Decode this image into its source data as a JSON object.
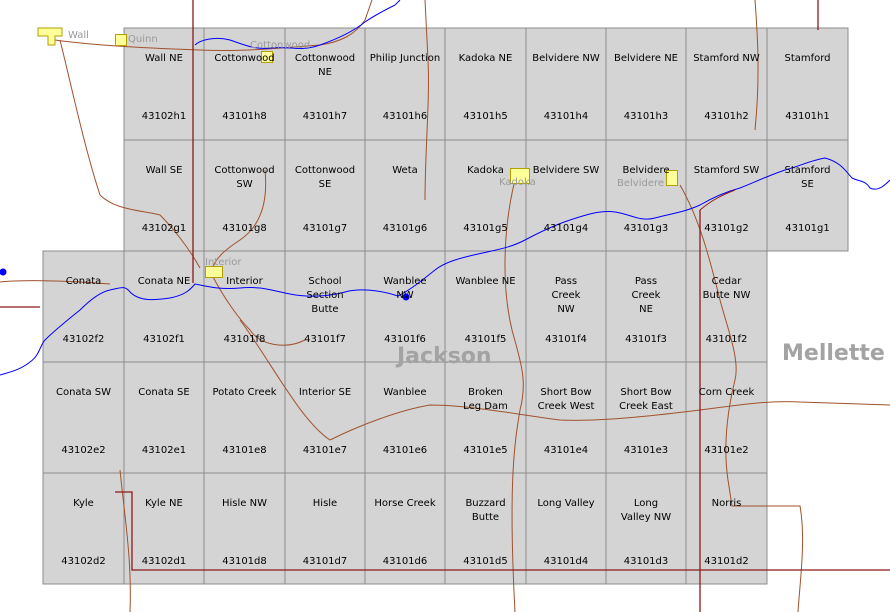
{
  "colors": {
    "quad_fill": "#d4d4d4",
    "quad_border": "#8c8c8c",
    "river": "#0000ff",
    "road": "#a0522d",
    "boundary": "#8b1a1a",
    "town_fill": "#ffff99",
    "town_label": "#9a9a9a",
    "county_label": "#a3a3a3"
  },
  "quads": [
    {
      "id": "wall-ne",
      "name": "Wall NE",
      "code": "43102h1"
    },
    {
      "id": "cottonwood",
      "name": "Cottonwood",
      "code": "43101h8"
    },
    {
      "id": "cottonwood-ne",
      "name": "Cottonwood\nNE",
      "code": "43101h7"
    },
    {
      "id": "philip-junction",
      "name": "Philip Junction",
      "code": "43101h6"
    },
    {
      "id": "kadoka-ne",
      "name": "Kadoka NE",
      "code": "43101h5"
    },
    {
      "id": "belvidere-nw",
      "name": "Belvidere NW",
      "code": "43101h4"
    },
    {
      "id": "belvidere-ne",
      "name": "Belvidere NE",
      "code": "43101h3"
    },
    {
      "id": "stamford-nw",
      "name": "Stamford NW",
      "code": "43101h2"
    },
    {
      "id": "stamford",
      "name": "Stamford",
      "code": "43101h1"
    },
    {
      "id": "wall-se",
      "name": "Wall SE",
      "code": "43102g1"
    },
    {
      "id": "cottonwood-sw",
      "name": "Cottonwood\nSW",
      "code": "43101g8"
    },
    {
      "id": "cottonwood-se",
      "name": "Cottonwood\nSE",
      "code": "43101g7"
    },
    {
      "id": "weta",
      "name": "Weta",
      "code": "43101g6"
    },
    {
      "id": "kadoka",
      "name": "Kadoka",
      "code": "43101g5"
    },
    {
      "id": "belvidere-sw",
      "name": "Belvidere SW",
      "code": "43101g4"
    },
    {
      "id": "belvidere",
      "name": "Belvidere",
      "code": "43101g3"
    },
    {
      "id": "stamford-sw",
      "name": "Stamford SW",
      "code": "43101g2"
    },
    {
      "id": "stamford-se",
      "name": "Stamford\nSE",
      "code": "43101g1"
    },
    {
      "id": "conata",
      "name": "Conata",
      "code": "43102f2"
    },
    {
      "id": "conata-ne",
      "name": "Conata NE",
      "code": "43102f1"
    },
    {
      "id": "interior",
      "name": "Interior",
      "code": "43101f8"
    },
    {
      "id": "school-section-butte",
      "name": "School\nSection\nButte",
      "code": "43101f7"
    },
    {
      "id": "wanblee-nw",
      "name": "Wanblee\nNW",
      "code": "43101f6"
    },
    {
      "id": "wanblee-ne",
      "name": "Wanblee NE",
      "code": "43101f5"
    },
    {
      "id": "pass-creek-nw",
      "name": "Pass\nCreek\nNW",
      "code": "43101f4"
    },
    {
      "id": "pass-creek-ne",
      "name": "Pass\nCreek\nNE",
      "code": "43101f3"
    },
    {
      "id": "cedar-butte-nw",
      "name": "Cedar\nButte NW",
      "code": "43101f2"
    },
    {
      "id": "conata-sw",
      "name": "Conata SW",
      "code": "43102e2"
    },
    {
      "id": "conata-se",
      "name": "Conata SE",
      "code": "43102e1"
    },
    {
      "id": "potato-creek",
      "name": "Potato Creek",
      "code": "43101e8"
    },
    {
      "id": "interior-se",
      "name": "Interior SE",
      "code": "43101e7"
    },
    {
      "id": "wanblee",
      "name": "Wanblee",
      "code": "43101e6"
    },
    {
      "id": "broken-leg-dam",
      "name": "Broken\nLeg Dam",
      "code": "43101e5"
    },
    {
      "id": "short-bow-creek-west",
      "name": "Short Bow\nCreek West",
      "code": "43101e4"
    },
    {
      "id": "short-bow-creek-east",
      "name": "Short Bow\nCreek East",
      "code": "43101e3"
    },
    {
      "id": "corn-creek",
      "name": "Corn Creek",
      "code": "43101e2"
    },
    {
      "id": "kyle",
      "name": "Kyle",
      "code": "43102d2"
    },
    {
      "id": "kyle-ne",
      "name": "Kyle NE",
      "code": "43102d1"
    },
    {
      "id": "hisle-nw",
      "name": "Hisle NW",
      "code": "43101d8"
    },
    {
      "id": "hisle",
      "name": "Hisle",
      "code": "43101d7"
    },
    {
      "id": "horse-creek",
      "name": "Horse Creek",
      "code": "43101d6"
    },
    {
      "id": "buzzard-butte",
      "name": "Buzzard\nButte",
      "code": "43101d5"
    },
    {
      "id": "long-valley",
      "name": "Long Valley",
      "code": "43101d4"
    },
    {
      "id": "long-valley-nw",
      "name": "Long\nValley NW",
      "code": "43101d3"
    },
    {
      "id": "norris",
      "name": "Norris",
      "code": "43101d2"
    }
  ],
  "towns": {
    "wall": "Wall",
    "quinn": "Quinn",
    "cottonwood": "Cottonwood",
    "kadoka": "Kadoka",
    "belvidere": "Belvidere",
    "interior": "Interior"
  },
  "counties": {
    "jackson": "Jackson",
    "mellette": "Mellette"
  }
}
